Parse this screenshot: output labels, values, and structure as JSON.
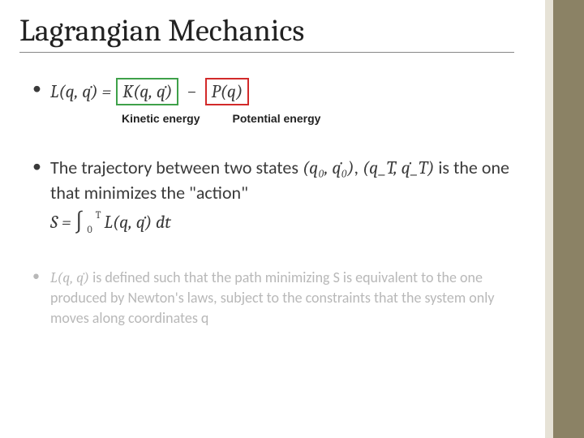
{
  "title": "Lagrangian Mechanics",
  "eq1": {
    "lhs": "L(q, q̇) =",
    "kinetic": "K(q, q̇)",
    "minus": "−",
    "potential": "P(q)"
  },
  "labels": {
    "kinetic": "Kinetic energy",
    "potential": "Potential energy"
  },
  "bullet2_a": "The trajectory between two states ",
  "bullet2_state0": "(q₀, q̇₀)",
  "bullet2_comma": ", ",
  "bullet2_stateT": "(q_T, q̇_T)",
  "bullet2_b": " is the one that minimizes the \"action\"",
  "action_lhs": "S =",
  "action_int": "∫",
  "action_lo": "0",
  "action_hi": "T",
  "action_body": "L(q, q̇) dt",
  "bullet3_lead": "L(q, q̇)",
  "bullet3_rest": " is defined such that the path minimizing S is equivalent to the one produced by Newton's laws, subject to the constraints that the system only moves along coordinates q",
  "colors": {
    "kinetic_box": "#3fa14a",
    "potential_box": "#d22a2a",
    "accent": "#8b8265",
    "accent_light": "#e6e2d6",
    "faded": "#b8b8b8",
    "text": "#3a3a3a"
  }
}
